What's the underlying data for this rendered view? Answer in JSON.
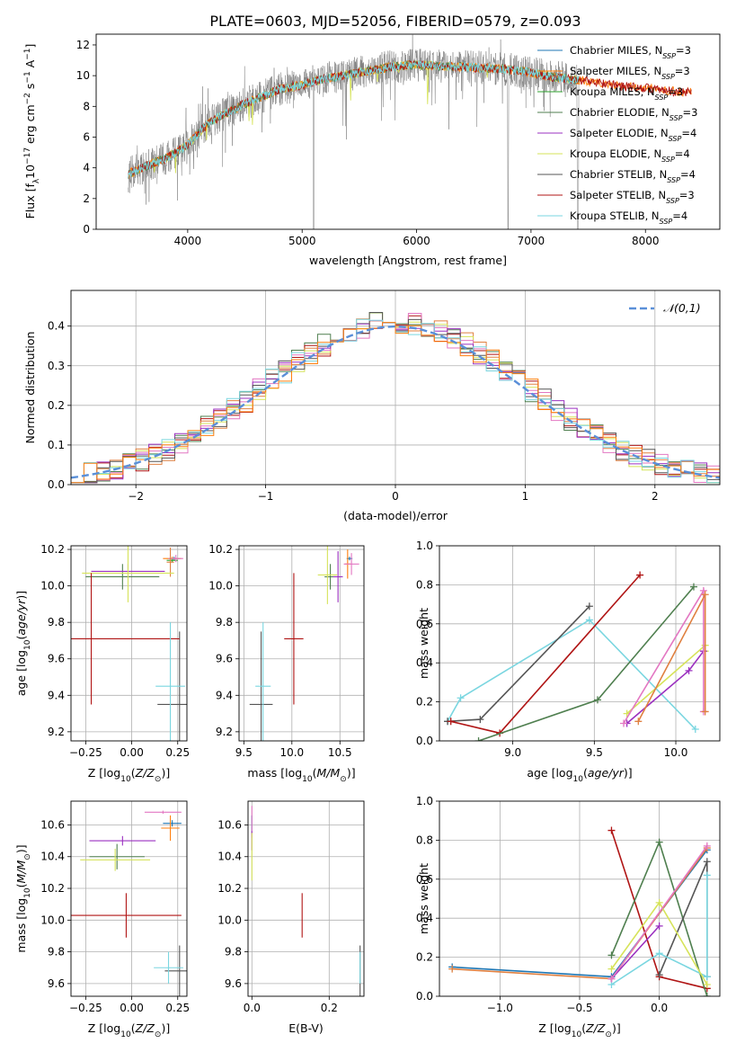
{
  "title": "PLATE=0603, MJD=52056, FIBERID=0579, z=0.093",
  "colors": {
    "Chabrier MILES": "#1f77b4",
    "Salpeter MILES": "#ff7f0e",
    "Kroupa MILES": "#2ca02c",
    "Chabrier ELODIE": "#4f7f4f",
    "Salpeter ELODIE": "#9b30c0",
    "Kroupa ELODIE": "#d6e35a",
    "Chabrier STELIB": "#555555",
    "Salpeter STELIB": "#b01515",
    "Kroupa STELIB": "#7ad6e0",
    "data": "#808080",
    "normal": "#5a8fd8",
    "extra_pink": "#e377c2",
    "extra_orange": "#e08040"
  },
  "chart_data": [
    {
      "id": "spectrum",
      "type": "line",
      "xlabel": "wavelength [Angstrom, rest frame]",
      "ylabel": "Flux [f_λ 10^-17 erg cm^-2 s^-1 A^-1]",
      "xlim": [
        3200,
        8650
      ],
      "ylim": [
        0,
        12.7
      ],
      "xticks": [
        4000,
        5000,
        6000,
        7000,
        8000
      ],
      "yticks": [
        0,
        2,
        4,
        6,
        8,
        10,
        12
      ],
      "data_range": [
        3480,
        7420
      ],
      "continuum_anchors": {
        "x": [
          3480,
          3600,
          3700,
          3800,
          3900,
          4000,
          4100,
          4200,
          4400,
          4600,
          4800,
          5000,
          5200,
          5500,
          5800,
          6000,
          6300,
          6600,
          6800,
          7000,
          7200,
          7420
        ],
        "y": [
          3.6,
          4.0,
          4.3,
          4.6,
          5.0,
          5.5,
          6.3,
          7.0,
          7.8,
          8.5,
          9.1,
          9.4,
          9.8,
          10.2,
          10.6,
          10.7,
          10.6,
          10.5,
          10.4,
          10.2,
          9.9,
          9.7
        ]
      },
      "model_extension": {
        "x": [
          7420,
          7600,
          7800,
          8000,
          8200,
          8400
        ],
        "y": [
          9.7,
          9.5,
          9.3,
          9.2,
          9.0,
          8.9
        ]
      },
      "legend": [
        {
          "label": "Chabrier MILES, N",
          "sub": "SSP",
          "suffix": "=3",
          "key": "Chabrier MILES"
        },
        {
          "label": "Salpeter MILES, N",
          "sub": "SSP",
          "suffix": "=3",
          "key": "Salpeter MILES"
        },
        {
          "label": "Kroupa MILES, N",
          "sub": "SSP",
          "suffix": "=3",
          "key": "Kroupa MILES"
        },
        {
          "label": "Chabrier ELODIE, N",
          "sub": "SSP",
          "suffix": "=3",
          "key": "Chabrier ELODIE"
        },
        {
          "label": "Salpeter ELODIE, N",
          "sub": "SSP",
          "suffix": "=4",
          "key": "Salpeter ELODIE"
        },
        {
          "label": "Kroupa ELODIE, N",
          "sub": "SSP",
          "suffix": "=4",
          "key": "Kroupa ELODIE"
        },
        {
          "label": "Chabrier STELIB, N",
          "sub": "SSP",
          "suffix": "=4",
          "key": "Chabrier STELIB"
        },
        {
          "label": "Salpeter STELIB, N",
          "sub": "SSP",
          "suffix": "=3",
          "key": "Salpeter STELIB"
        },
        {
          "label": "Kroupa STELIB, N",
          "sub": "SSP",
          "suffix": "=4",
          "key": "Kroupa STELIB"
        }
      ]
    },
    {
      "id": "residuals",
      "type": "bar",
      "xlabel": "(data-model)/error",
      "ylabel": "Normed distribution",
      "xlim": [
        -2.5,
        2.5
      ],
      "ylim": [
        0,
        0.49
      ],
      "xticks": [
        -2,
        -1,
        0,
        1,
        2
      ],
      "yticks": [
        0.0,
        0.1,
        0.2,
        0.3,
        0.4
      ],
      "bin_width": 0.1,
      "legend": "𝒩(0,1)",
      "grid": true
    },
    {
      "id": "age_vs_Z",
      "type": "scatter",
      "xlabel": "Z [log10(Z/Z⊙)]",
      "ylabel": "age [log10(age/yr)]",
      "xlim": [
        -0.33,
        0.3
      ],
      "ylim": [
        9.15,
        10.22
      ],
      "xticks": [
        -0.25,
        0.0,
        0.25
      ],
      "yticks": [
        9.2,
        9.4,
        9.6,
        9.8,
        10.0,
        10.2
      ],
      "points": [
        {
          "key": "Chabrier MILES",
          "x": 0.23,
          "y": 10.15,
          "xerr": 0.03,
          "yerr": 0.01
        },
        {
          "key": "Salpeter MILES",
          "x": 0.22,
          "y": 10.15,
          "xerr": 0.05,
          "yerr": 0.01
        },
        {
          "key": "Kroupa MILES",
          "x": 0.22,
          "y": 10.14,
          "xerr": 0.03,
          "yerr": 0.01
        },
        {
          "key": "extra_pink",
          "x": 0.24,
          "y": 10.15,
          "xerr": 0.04,
          "yerr": 0.02
        },
        {
          "key": "extra_orange",
          "x": 0.21,
          "y": 10.13,
          "xerr": 0.02,
          "yerr": 0.08
        },
        {
          "key": "Chabrier ELODIE",
          "x": -0.05,
          "y": 10.05,
          "xerr": 0.2,
          "yerr": 0.07
        },
        {
          "key": "Salpeter ELODIE",
          "x": -0.02,
          "y": 10.08,
          "xerr": 0.2,
          "yerr": 0.04
        },
        {
          "key": "Kroupa ELODIE",
          "x": -0.02,
          "y": 10.07,
          "xerr": 0.25,
          "yerr": 0.16
        },
        {
          "key": "Chabrier STELIB",
          "x": 0.26,
          "y": 9.35,
          "xerr": 0.12,
          "yerr": 0.4
        },
        {
          "key": "Salpeter STELIB",
          "x": -0.22,
          "y": 9.71,
          "xerr": 0.48,
          "yerr": 0.36
        },
        {
          "key": "Kroupa STELIB",
          "x": 0.21,
          "y": 9.45,
          "xerr": 0.08,
          "yerr": 0.35
        }
      ]
    },
    {
      "id": "age_vs_mass",
      "type": "scatter",
      "xlabel": "mass [log10(M/M⊙)]",
      "ylabel": "",
      "xlim": [
        9.45,
        10.75
      ],
      "ylim": [
        9.15,
        10.22
      ],
      "xticks": [
        9.5,
        10.0,
        10.5
      ],
      "yticks": [
        9.2,
        9.4,
        9.6,
        9.8,
        10.0,
        10.2
      ],
      "points": [
        {
          "key": "Chabrier MILES",
          "x": 10.6,
          "y": 10.15,
          "xerr": 0.03,
          "yerr": 0.01
        },
        {
          "key": "Salpeter MILES",
          "x": 10.58,
          "y": 10.12,
          "xerr": 0.03,
          "yerr": 0.08
        },
        {
          "key": "extra_pink",
          "x": 10.62,
          "y": 10.12,
          "xerr": 0.08,
          "yerr": 0.06
        },
        {
          "key": "Chabrier ELODIE",
          "x": 10.4,
          "y": 10.05,
          "xerr": 0.06,
          "yerr": 0.07
        },
        {
          "key": "Salpeter ELODIE",
          "x": 10.48,
          "y": 10.05,
          "xerr": 0.05,
          "yerr": 0.14
        },
        {
          "key": "Kroupa ELODIE",
          "x": 10.37,
          "y": 10.06,
          "xerr": 0.1,
          "yerr": 0.16
        },
        {
          "key": "Chabrier STELIB",
          "x": 9.68,
          "y": 9.35,
          "xerr": 0.12,
          "yerr": 0.4
        },
        {
          "key": "Salpeter STELIB",
          "x": 10.02,
          "y": 9.71,
          "xerr": 0.1,
          "yerr": 0.36
        },
        {
          "key": "Kroupa STELIB",
          "x": 9.7,
          "y": 9.45,
          "xerr": 0.08,
          "yerr": 0.35
        }
      ]
    },
    {
      "id": "weight_vs_age",
      "type": "line",
      "xlabel": "age [log10(age/yr)]",
      "ylabel": "mass weight",
      "xlim": [
        8.55,
        10.27
      ],
      "ylim": [
        0,
        1.0
      ],
      "xticks": [
        9.0,
        9.5,
        10.0
      ],
      "yticks": [
        0.0,
        0.2,
        0.4,
        0.6,
        0.8,
        1.0
      ],
      "series": [
        {
          "key": "Kroupa STELIB",
          "x": [
            8.6,
            8.68,
            9.47,
            10.12
          ],
          "y": [
            0.1,
            0.22,
            0.62,
            0.06
          ]
        },
        {
          "key": "Chabrier STELIB",
          "x": [
            8.6,
            8.8,
            9.47
          ],
          "y": [
            0.1,
            0.11,
            0.69
          ]
        },
        {
          "key": "Salpeter STELIB",
          "x": [
            8.62,
            8.92,
            9.78
          ],
          "y": [
            0.1,
            0.04,
            0.85
          ]
        },
        {
          "key": "Chabrier ELODIE",
          "x": [
            8.79,
            9.52,
            10.11
          ],
          "y": [
            0.0,
            0.21,
            0.79
          ]
        },
        {
          "key": "Kroupa ELODIE",
          "x": [
            9.7,
            10.18,
            10.18
          ],
          "y": [
            0.14,
            0.49,
            0.46
          ]
        },
        {
          "key": "Salpeter ELODIE",
          "x": [
            9.7,
            10.08,
            10.17
          ],
          "y": [
            0.09,
            0.36,
            0.46
          ]
        },
        {
          "key": "extra_pink",
          "x": [
            9.68,
            10.17,
            10.17
          ],
          "y": [
            0.09,
            0.77,
            0.15
          ]
        },
        {
          "key": "extra_orange",
          "x": [
            9.77,
            10.18,
            10.18
          ],
          "y": [
            0.1,
            0.75,
            0.15
          ]
        }
      ]
    },
    {
      "id": "mass_vs_Z",
      "type": "scatter",
      "xlabel": "Z [log10(Z/Z⊙)]",
      "ylabel": "mass [log10(M/M⊙)]",
      "xlim": [
        -0.33,
        0.3
      ],
      "ylim": [
        9.52,
        10.75
      ],
      "xticks": [
        -0.25,
        0.0,
        0.25
      ],
      "yticks": [
        9.6,
        9.8,
        10.0,
        10.2,
        10.4,
        10.6
      ],
      "points": [
        {
          "key": "Chabrier MILES",
          "x": 0.22,
          "y": 10.61,
          "xerr": 0.05,
          "yerr": 0.02
        },
        {
          "key": "Salpeter MILES",
          "x": 0.21,
          "y": 10.58,
          "xerr": 0.05,
          "yerr": 0.08
        },
        {
          "key": "extra_pink",
          "x": 0.17,
          "y": 10.68,
          "xerr": 0.1,
          "yerr": 0.01
        },
        {
          "key": "Chabrier ELODIE",
          "x": -0.08,
          "y": 10.4,
          "xerr": 0.15,
          "yerr": 0.08
        },
        {
          "key": "Salpeter ELODIE",
          "x": -0.05,
          "y": 10.5,
          "xerr": 0.18,
          "yerr": 0.03
        },
        {
          "key": "Kroupa ELODIE",
          "x": -0.09,
          "y": 10.38,
          "xerr": 0.19,
          "yerr": 0.07
        },
        {
          "key": "Chabrier STELIB",
          "x": 0.26,
          "y": 9.68,
          "xerr": 0.08,
          "yerr": 0.16
        },
        {
          "key": "Salpeter STELIB",
          "x": -0.03,
          "y": 10.03,
          "xerr": 0.3,
          "yerr": 0.14
        },
        {
          "key": "Kroupa STELIB",
          "x": 0.2,
          "y": 9.7,
          "xerr": 0.08,
          "yerr": 0.1
        }
      ]
    },
    {
      "id": "mass_vs_ebv",
      "type": "scatter",
      "xlabel": "E(B-V)",
      "ylabel": "",
      "xlim": [
        -0.01,
        0.29
      ],
      "ylim": [
        9.52,
        10.75
      ],
      "xticks": [
        0.0,
        0.2
      ],
      "yticks": [
        9.6,
        9.8,
        10.0,
        10.2,
        10.4,
        10.6
      ],
      "points": [
        {
          "key": "Chabrier MILES",
          "x": 0.0,
          "y": 10.6,
          "xerr": 0.0,
          "yerr": 0.06
        },
        {
          "key": "extra_pink",
          "x": 0.0,
          "y": 10.62,
          "xerr": 0.0,
          "yerr": 0.1
        },
        {
          "key": "Salpeter ELODIE",
          "x": 0.0,
          "y": 10.5,
          "xerr": 0.0,
          "yerr": 0.06
        },
        {
          "key": "Kroupa ELODIE",
          "x": 0.0,
          "y": 10.4,
          "xerr": 0.0,
          "yerr": 0.15
        },
        {
          "key": "Salpeter STELIB",
          "x": 0.13,
          "y": 10.03,
          "xerr": 0.0,
          "yerr": 0.14
        },
        {
          "key": "Chabrier STELIB",
          "x": 0.28,
          "y": 9.68,
          "xerr": 0.0,
          "yerr": 0.16
        },
        {
          "key": "Kroupa STELIB",
          "x": 0.28,
          "y": 9.7,
          "xerr": 0.0,
          "yerr": 0.1
        }
      ]
    },
    {
      "id": "weight_vs_Z",
      "type": "line",
      "xlabel": "Z [log10(Z/Z⊙)]",
      "ylabel": "mass weight",
      "xlim": [
        -1.38,
        0.38
      ],
      "ylim": [
        0,
        1.0
      ],
      "xticks": [
        -1.0,
        -0.5,
        0.0
      ],
      "yticks": [
        0.0,
        0.2,
        0.4,
        0.6,
        0.8,
        1.0
      ],
      "series": [
        {
          "key": "Chabrier MILES",
          "x": [
            -1.3,
            -0.3,
            0.3
          ],
          "y": [
            0.15,
            0.1,
            0.75
          ]
        },
        {
          "key": "extra_orange",
          "x": [
            -1.3,
            -0.3,
            0.3
          ],
          "y": [
            0.14,
            0.09,
            0.76
          ]
        },
        {
          "key": "Salpeter STELIB",
          "x": [
            -0.3,
            0.0,
            0.3
          ],
          "y": [
            0.85,
            0.1,
            0.04
          ]
        },
        {
          "key": "Chabrier ELODIE",
          "x": [
            -0.3,
            0.0,
            0.3
          ],
          "y": [
            0.21,
            0.79,
            0.0
          ]
        },
        {
          "key": "Chabrier STELIB",
          "x": [
            0.0,
            0.3,
            0.3
          ],
          "y": [
            0.11,
            0.69,
            0.1
          ]
        },
        {
          "key": "Kroupa STELIB",
          "x": [
            -0.3,
            0.0,
            0.3,
            0.3
          ],
          "y": [
            0.06,
            0.22,
            0.1,
            0.62
          ]
        },
        {
          "key": "Kroupa ELODIE",
          "x": [
            -0.3,
            0.0,
            0.3
          ],
          "y": [
            0.14,
            0.48,
            0.06
          ]
        },
        {
          "key": "Salpeter ELODIE",
          "x": [
            -0.3,
            0.0
          ],
          "y": [
            0.09,
            0.36
          ]
        },
        {
          "key": "extra_pink",
          "x": [
            -0.3,
            0.3
          ],
          "y": [
            0.09,
            0.77
          ]
        }
      ]
    }
  ]
}
